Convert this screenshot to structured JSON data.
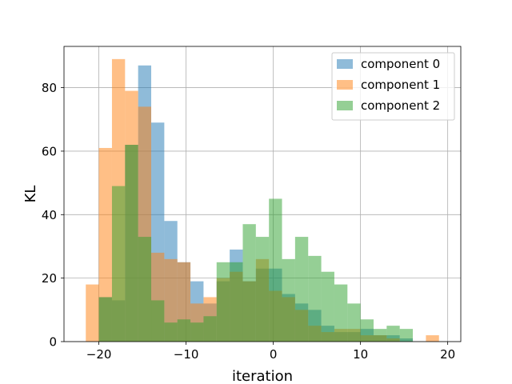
{
  "chart_data": {
    "type": "histogram",
    "xlabel": "iteration",
    "ylabel": "KL",
    "xlim": [
      -24,
      21.5
    ],
    "ylim": [
      0,
      93
    ],
    "xticks": [
      -20,
      -10,
      0,
      10,
      20
    ],
    "yticks": [
      0,
      20,
      40,
      60,
      80
    ],
    "grid": true,
    "legend_position": "top-right",
    "series": [
      {
        "name": "component 0",
        "color": "#1f77b4",
        "alpha": 0.5,
        "bins": [
          {
            "x0": -20.0,
            "x1": -18.5,
            "count": 14
          },
          {
            "x0": -18.5,
            "x1": -17.0,
            "count": 13
          },
          {
            "x0": -17.0,
            "x1": -15.5,
            "count": 62
          },
          {
            "x0": -15.5,
            "x1": -14.0,
            "count": 87
          },
          {
            "x0": -14.0,
            "x1": -12.5,
            "count": 69
          },
          {
            "x0": -12.5,
            "x1": -11.0,
            "count": 38
          },
          {
            "x0": -11.0,
            "x1": -9.5,
            "count": 25
          },
          {
            "x0": -9.5,
            "x1": -8.0,
            "count": 19
          },
          {
            "x0": -8.0,
            "x1": -6.5,
            "count": 12
          },
          {
            "x0": -6.5,
            "x1": -5.0,
            "count": 19
          },
          {
            "x0": -5.0,
            "x1": -3.5,
            "count": 29
          },
          {
            "x0": -3.5,
            "x1": -2.0,
            "count": 19
          },
          {
            "x0": -2.0,
            "x1": -0.5,
            "count": 23
          },
          {
            "x0": -0.5,
            "x1": 1.0,
            "count": 23
          },
          {
            "x0": 1.0,
            "x1": 2.5,
            "count": 15
          },
          {
            "x0": 2.5,
            "x1": 4.0,
            "count": 12
          },
          {
            "x0": 4.0,
            "x1": 5.5,
            "count": 10
          },
          {
            "x0": 5.5,
            "x1": 7.0,
            "count": 5
          },
          {
            "x0": 7.0,
            "x1": 8.5,
            "count": 3
          },
          {
            "x0": 8.5,
            "x1": 10.0,
            "count": 3
          },
          {
            "x0": 10.0,
            "x1": 11.5,
            "count": 4
          },
          {
            "x0": 11.5,
            "x1": 13.0,
            "count": 2
          },
          {
            "x0": 13.0,
            "x1": 14.5,
            "count": 2
          },
          {
            "x0": 14.5,
            "x1": 16.0,
            "count": 1
          }
        ]
      },
      {
        "name": "component 1",
        "color": "#ff7f0e",
        "alpha": 0.5,
        "bins": [
          {
            "x0": -21.5,
            "x1": -20.0,
            "count": 18
          },
          {
            "x0": -20.0,
            "x1": -18.5,
            "count": 61
          },
          {
            "x0": -18.5,
            "x1": -17.0,
            "count": 89
          },
          {
            "x0": -17.0,
            "x1": -15.5,
            "count": 79
          },
          {
            "x0": -15.5,
            "x1": -14.0,
            "count": 74
          },
          {
            "x0": -14.0,
            "x1": -12.5,
            "count": 28
          },
          {
            "x0": -12.5,
            "x1": -11.0,
            "count": 26
          },
          {
            "x0": -11.0,
            "x1": -9.5,
            "count": 25
          },
          {
            "x0": -9.5,
            "x1": -8.0,
            "count": 12
          },
          {
            "x0": -8.0,
            "x1": -6.5,
            "count": 14
          },
          {
            "x0": -6.5,
            "x1": -5.0,
            "count": 20
          },
          {
            "x0": -5.0,
            "x1": -3.5,
            "count": 22
          },
          {
            "x0": -3.5,
            "x1": -2.0,
            "count": 19
          },
          {
            "x0": -2.0,
            "x1": -0.5,
            "count": 26
          },
          {
            "x0": -0.5,
            "x1": 1.0,
            "count": 16
          },
          {
            "x0": 1.0,
            "x1": 2.5,
            "count": 14
          },
          {
            "x0": 2.5,
            "x1": 4.0,
            "count": 10
          },
          {
            "x0": 4.0,
            "x1": 5.5,
            "count": 5
          },
          {
            "x0": 5.5,
            "x1": 7.0,
            "count": 3
          },
          {
            "x0": 7.0,
            "x1": 8.5,
            "count": 4
          },
          {
            "x0": 8.5,
            "x1": 10.0,
            "count": 4
          },
          {
            "x0": 10.0,
            "x1": 11.5,
            "count": 2
          },
          {
            "x0": 11.5,
            "x1": 13.0,
            "count": 2
          },
          {
            "x0": 13.0,
            "x1": 14.5,
            "count": 1
          },
          {
            "x0": 17.5,
            "x1": 19.0,
            "count": 2
          }
        ]
      },
      {
        "name": "component 2",
        "color": "#2ca02c",
        "alpha": 0.5,
        "bins": [
          {
            "x0": -20.0,
            "x1": -18.5,
            "count": 14
          },
          {
            "x0": -18.5,
            "x1": -17.0,
            "count": 49
          },
          {
            "x0": -17.0,
            "x1": -15.5,
            "count": 62
          },
          {
            "x0": -15.5,
            "x1": -14.0,
            "count": 33
          },
          {
            "x0": -14.0,
            "x1": -12.5,
            "count": 13
          },
          {
            "x0": -12.5,
            "x1": -11.0,
            "count": 6
          },
          {
            "x0": -11.0,
            "x1": -9.5,
            "count": 7
          },
          {
            "x0": -9.5,
            "x1": -8.0,
            "count": 6
          },
          {
            "x0": -8.0,
            "x1": -6.5,
            "count": 8
          },
          {
            "x0": -6.5,
            "x1": -5.0,
            "count": 25
          },
          {
            "x0": -5.0,
            "x1": -3.5,
            "count": 25
          },
          {
            "x0": -3.5,
            "x1": -2.0,
            "count": 37
          },
          {
            "x0": -2.0,
            "x1": -0.5,
            "count": 33
          },
          {
            "x0": -0.5,
            "x1": 1.0,
            "count": 45
          },
          {
            "x0": 1.0,
            "x1": 2.5,
            "count": 26
          },
          {
            "x0": 2.5,
            "x1": 4.0,
            "count": 33
          },
          {
            "x0": 4.0,
            "x1": 5.5,
            "count": 27
          },
          {
            "x0": 5.5,
            "x1": 7.0,
            "count": 22
          },
          {
            "x0": 7.0,
            "x1": 8.5,
            "count": 18
          },
          {
            "x0": 8.5,
            "x1": 10.0,
            "count": 12
          },
          {
            "x0": 10.0,
            "x1": 11.5,
            "count": 7
          },
          {
            "x0": 11.5,
            "x1": 13.0,
            "count": 4
          },
          {
            "x0": 13.0,
            "x1": 14.5,
            "count": 5
          },
          {
            "x0": 14.5,
            "x1": 16.0,
            "count": 4
          }
        ]
      }
    ]
  }
}
